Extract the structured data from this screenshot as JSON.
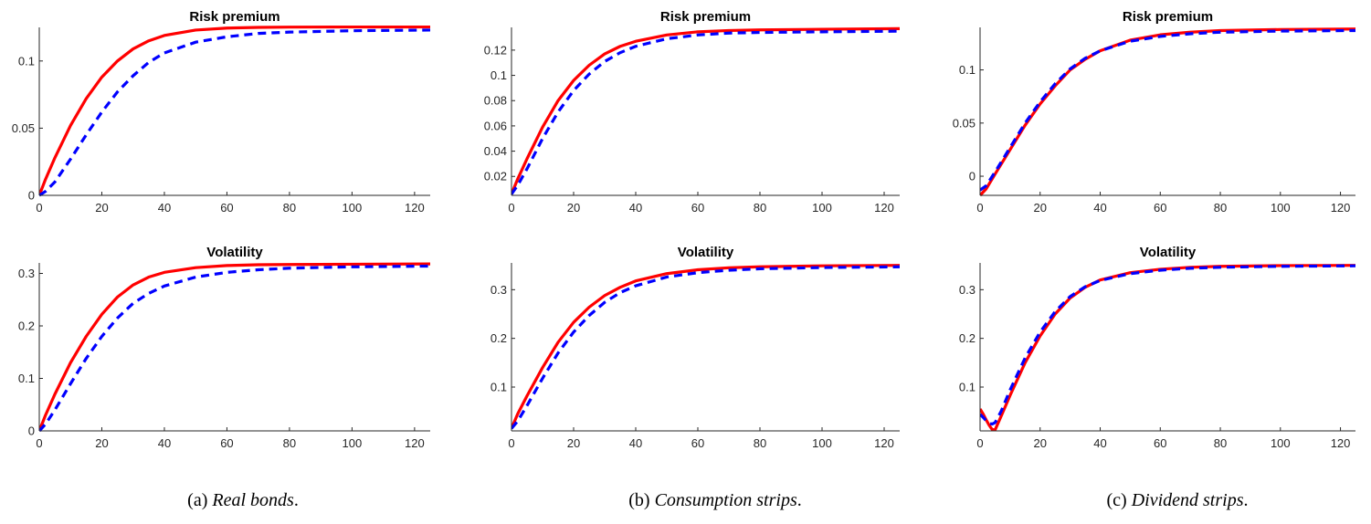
{
  "colors": {
    "model": "#ff0000",
    "approximation": "#0000ff",
    "axis": "#262626"
  },
  "captions": [
    {
      "label": "(a)",
      "name": "Real bonds"
    },
    {
      "label": "(b)",
      "name": "Consumption strips"
    },
    {
      "label": "(c)",
      "name": "Dividend strips"
    }
  ],
  "chart_data": [
    {
      "type": "line",
      "title": "Risk premium",
      "panel": "a",
      "row": "top",
      "xlim": [
        0,
        125
      ],
      "ylim": [
        0,
        0.125
      ],
      "xticks": [
        0,
        20,
        40,
        60,
        80,
        100,
        120
      ],
      "xtick_labels": [
        "0",
        "20",
        "40",
        "60",
        "80",
        "100",
        "120"
      ],
      "yticks": [
        0,
        0.05,
        0.1
      ],
      "ytick_labels": [
        "0",
        "0.05",
        "0.1"
      ],
      "series": [
        {
          "style": "solid",
          "color": "#ff0000",
          "x": [
            0,
            2,
            5,
            10,
            15,
            20,
            25,
            30,
            35,
            40,
            50,
            60,
            70,
            80,
            100,
            125
          ],
          "y": [
            0,
            0.012,
            0.028,
            0.052,
            0.072,
            0.088,
            0.1,
            0.109,
            0.115,
            0.119,
            0.123,
            0.1245,
            0.125,
            0.1252,
            0.1253,
            0.1253
          ]
        },
        {
          "style": "dashed",
          "color": "#0000ff",
          "x": [
            0,
            2,
            5,
            10,
            15,
            20,
            25,
            30,
            35,
            40,
            50,
            60,
            70,
            80,
            100,
            125
          ],
          "y": [
            0,
            0.003,
            0.01,
            0.027,
            0.045,
            0.062,
            0.077,
            0.089,
            0.099,
            0.106,
            0.114,
            0.118,
            0.1205,
            0.1215,
            0.1225,
            0.123
          ]
        }
      ]
    },
    {
      "type": "line",
      "title": "Risk premium",
      "panel": "b",
      "row": "top",
      "xlim": [
        0,
        125
      ],
      "ylim": [
        0.005,
        0.138
      ],
      "xticks": [
        0,
        20,
        40,
        60,
        80,
        100,
        120
      ],
      "xtick_labels": [
        "0",
        "20",
        "40",
        "60",
        "80",
        "100",
        "120"
      ],
      "yticks": [
        0.02,
        0.04,
        0.06,
        0.08,
        0.1,
        0.12
      ],
      "ytick_labels": [
        "0.02",
        "0.04",
        "0.06",
        "0.08",
        "0.1",
        "0.12"
      ],
      "series": [
        {
          "style": "solid",
          "color": "#ff0000",
          "x": [
            0,
            2,
            5,
            10,
            15,
            20,
            25,
            30,
            35,
            40,
            50,
            60,
            70,
            80,
            100,
            125
          ],
          "y": [
            0.006,
            0.018,
            0.034,
            0.059,
            0.08,
            0.096,
            0.108,
            0.117,
            0.123,
            0.127,
            0.132,
            0.1345,
            0.1355,
            0.136,
            0.1365,
            0.137
          ]
        },
        {
          "style": "dashed",
          "color": "#0000ff",
          "x": [
            0,
            2,
            5,
            10,
            15,
            20,
            25,
            30,
            35,
            40,
            50,
            60,
            70,
            80,
            100,
            125
          ],
          "y": [
            0.006,
            0.013,
            0.026,
            0.05,
            0.071,
            0.088,
            0.101,
            0.111,
            0.118,
            0.123,
            0.129,
            0.132,
            0.1335,
            0.134,
            0.1345,
            0.135
          ]
        }
      ]
    },
    {
      "type": "line",
      "title": "Risk premium",
      "panel": "c",
      "row": "top",
      "xlim": [
        0,
        125
      ],
      "ylim": [
        -0.018,
        0.14
      ],
      "xticks": [
        0,
        20,
        40,
        60,
        80,
        100,
        120
      ],
      "xtick_labels": [
        "0",
        "20",
        "40",
        "60",
        "80",
        "100",
        "120"
      ],
      "yticks": [
        0,
        0.05,
        0.1
      ],
      "ytick_labels": [
        "0",
        "0.05",
        "0.1"
      ],
      "series": [
        {
          "style": "solid",
          "color": "#ff0000",
          "x": [
            0,
            2,
            5,
            10,
            15,
            20,
            25,
            30,
            35,
            40,
            50,
            60,
            70,
            80,
            100,
            125
          ],
          "y": [
            -0.018,
            -0.012,
            0.002,
            0.025,
            0.048,
            0.068,
            0.085,
            0.1,
            0.11,
            0.118,
            0.128,
            0.133,
            0.1355,
            0.137,
            0.138,
            0.1385
          ]
        },
        {
          "style": "dashed",
          "color": "#0000ff",
          "x": [
            0,
            2,
            5,
            10,
            15,
            20,
            25,
            30,
            35,
            40,
            50,
            60,
            70,
            80,
            100,
            125
          ],
          "y": [
            -0.013,
            -0.009,
            0.004,
            0.027,
            0.05,
            0.07,
            0.087,
            0.101,
            0.111,
            0.118,
            0.127,
            0.1315,
            0.134,
            0.1355,
            0.1365,
            0.137
          ]
        }
      ]
    },
    {
      "type": "line",
      "title": "Volatility",
      "panel": "a",
      "row": "bottom",
      "xlim": [
        0,
        125
      ],
      "ylim": [
        0,
        0.32
      ],
      "xticks": [
        0,
        20,
        40,
        60,
        80,
        100,
        120
      ],
      "xtick_labels": [
        "0",
        "20",
        "40",
        "60",
        "80",
        "100",
        "120"
      ],
      "yticks": [
        0,
        0.1,
        0.2,
        0.3
      ],
      "ytick_labels": [
        "0",
        "0.1",
        "0.2",
        "0.3"
      ],
      "series": [
        {
          "style": "solid",
          "color": "#ff0000",
          "x": [
            0,
            2,
            5,
            10,
            15,
            20,
            25,
            30,
            35,
            40,
            50,
            60,
            70,
            80,
            100,
            125
          ],
          "y": [
            0,
            0.03,
            0.07,
            0.13,
            0.18,
            0.222,
            0.255,
            0.278,
            0.293,
            0.302,
            0.311,
            0.315,
            0.3165,
            0.317,
            0.3175,
            0.318
          ]
        },
        {
          "style": "dashed",
          "color": "#0000ff",
          "x": [
            0,
            2,
            5,
            10,
            15,
            20,
            25,
            30,
            35,
            40,
            50,
            60,
            70,
            80,
            100,
            125
          ],
          "y": [
            0,
            0.013,
            0.04,
            0.09,
            0.138,
            0.18,
            0.215,
            0.243,
            0.262,
            0.276,
            0.293,
            0.302,
            0.307,
            0.31,
            0.3125,
            0.314
          ]
        }
      ]
    },
    {
      "type": "line",
      "title": "Volatility",
      "panel": "b",
      "row": "bottom",
      "xlim": [
        0,
        125
      ],
      "ylim": [
        0.01,
        0.355
      ],
      "xticks": [
        0,
        20,
        40,
        60,
        80,
        100,
        120
      ],
      "xtick_labels": [
        "0",
        "20",
        "40",
        "60",
        "80",
        "100",
        "120"
      ],
      "yticks": [
        0.1,
        0.2,
        0.3
      ],
      "ytick_labels": [
        "0.1",
        "0.2",
        "0.3"
      ],
      "series": [
        {
          "style": "solid",
          "color": "#ff0000",
          "x": [
            0,
            2,
            5,
            10,
            15,
            20,
            25,
            30,
            35,
            40,
            50,
            60,
            70,
            80,
            100,
            125
          ],
          "y": [
            0.015,
            0.045,
            0.082,
            0.14,
            0.192,
            0.233,
            0.264,
            0.288,
            0.305,
            0.318,
            0.333,
            0.341,
            0.345,
            0.347,
            0.349,
            0.35
          ]
        },
        {
          "style": "dashed",
          "color": "#0000ff",
          "x": [
            0,
            2,
            5,
            10,
            15,
            20,
            25,
            30,
            35,
            40,
            50,
            60,
            70,
            80,
            100,
            125
          ],
          "y": [
            0.015,
            0.03,
            0.062,
            0.118,
            0.17,
            0.213,
            0.247,
            0.274,
            0.294,
            0.308,
            0.326,
            0.335,
            0.34,
            0.343,
            0.3455,
            0.347
          ]
        }
      ]
    },
    {
      "type": "line",
      "title": "Volatility",
      "panel": "c",
      "row": "bottom",
      "xlim": [
        0,
        125
      ],
      "ylim": [
        0.01,
        0.355
      ],
      "xticks": [
        0,
        20,
        40,
        60,
        80,
        100,
        120
      ],
      "xtick_labels": [
        "0",
        "20",
        "40",
        "60",
        "80",
        "100",
        "120"
      ],
      "yticks": [
        0.1,
        0.2,
        0.3
      ],
      "ytick_labels": [
        "0.1",
        "0.2",
        "0.3"
      ],
      "series": [
        {
          "style": "solid",
          "color": "#ff0000",
          "x": [
            0,
            1,
            2,
            3,
            4,
            5,
            7,
            10,
            15,
            20,
            25,
            30,
            35,
            40,
            50,
            60,
            70,
            80,
            100,
            125
          ],
          "y": [
            0.055,
            0.045,
            0.033,
            0.022,
            0.013,
            0.012,
            0.04,
            0.083,
            0.15,
            0.205,
            0.25,
            0.283,
            0.305,
            0.32,
            0.335,
            0.342,
            0.346,
            0.348,
            0.3495,
            0.35
          ]
        },
        {
          "style": "dashed",
          "color": "#0000ff",
          "x": [
            0,
            1,
            2,
            3,
            4,
            5,
            7,
            10,
            15,
            20,
            25,
            30,
            35,
            40,
            50,
            60,
            70,
            80,
            100,
            125
          ],
          "y": [
            0.044,
            0.038,
            0.031,
            0.026,
            0.024,
            0.027,
            0.05,
            0.094,
            0.16,
            0.213,
            0.255,
            0.286,
            0.306,
            0.319,
            0.333,
            0.34,
            0.344,
            0.346,
            0.348,
            0.349
          ]
        }
      ]
    }
  ]
}
